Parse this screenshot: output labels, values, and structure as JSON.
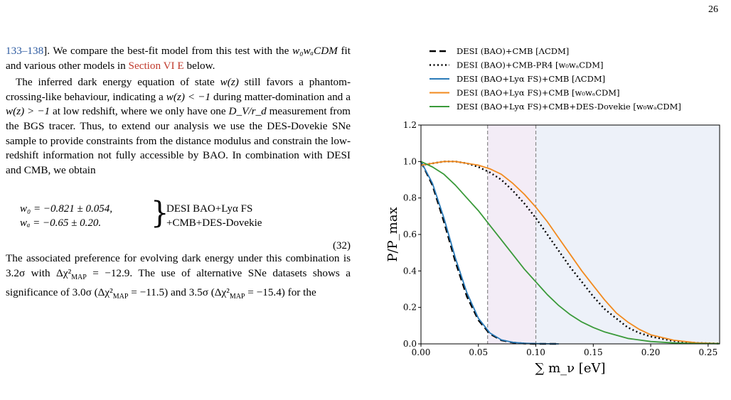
{
  "page": {
    "number": "26"
  },
  "text": {
    "p1_cite": "133–138",
    "p1_after_cite": "]. We compare the best-fit model from this test with the ",
    "p1_model": "w₀wₐCDM",
    "p1_mid": " fit and various other models in ",
    "p1_ref": "Section VI E",
    "p1_end": " below.",
    "p2_a": "The inferred dark energy equation of state ",
    "p2_wz": "w(z)",
    "p2_b": " still favors a phantom-crossing-like behaviour, indicating a ",
    "p2_wz_lt": "w(z) < −1",
    "p2_c": " during matter-domination and a ",
    "p2_wz_gt": "w(z) > −1",
    "p2_d": " at low redshift, where we only have one ",
    "p2_dv": "D_V/r_d",
    "p2_e": " measurement from the BGS tracer. Thus, to extend our analysis we use the DES-Dovekie SNe sample to provide constraints from the distance modulus and constrain the low-redshift information not fully accessible by BAO. In combination with DESI and CMB, we obtain",
    "eq_w0": "w₀ = −0.821 ± 0.054,",
    "eq_wa": "wₐ = −0.65 ± 0.20.",
    "eq_label_1": "DESI BAO+Lyα FS",
    "eq_label_2": "+CMB+DES-Dovekie",
    "eq_number": "(32)",
    "p3_a": "The associated preference for evolving dark energy under this combination is 3.2σ with Δχ²",
    "p3_sub": "MAP",
    "p3_b": " = −12.9. The use of alternative SNe datasets shows a significance of 3.0σ (Δχ²",
    "p3_c": " = −11.5) and 3.5σ (Δχ²",
    "p3_d": " = −15.4) for the"
  },
  "chart_data": {
    "type": "line",
    "xlabel": "∑ m_ν [eV]",
    "ylabel": "P/P_max",
    "xlim": [
      0.0,
      0.26
    ],
    "ylim": [
      0.0,
      1.2
    ],
    "xticks": [
      "0.00",
      "0.05",
      "0.10",
      "0.15",
      "0.20",
      "0.25"
    ],
    "yticks": [
      "0.0",
      "0.2",
      "0.4",
      "0.6",
      "0.8",
      "1.0",
      "1.2"
    ],
    "vlines": [
      0.058,
      0.1
    ],
    "shaded_regions": [
      {
        "from": 0.058,
        "to": 0.1,
        "color": "#f3ecf6"
      },
      {
        "from": 0.1,
        "to": 0.26,
        "color": "#edf1f9"
      }
    ],
    "legend_position": "top",
    "series": [
      {
        "name": "DESI (BAO)+CMB [ΛCDM]",
        "color": "#000000",
        "style": "dashed",
        "x": [
          0.0,
          0.01,
          0.02,
          0.03,
          0.04,
          0.05,
          0.06,
          0.07,
          0.08,
          0.09,
          0.1,
          0.12
        ],
        "y": [
          1.0,
          0.87,
          0.67,
          0.45,
          0.26,
          0.13,
          0.055,
          0.02,
          0.007,
          0.002,
          0.0005,
          0.0
        ]
      },
      {
        "name": "DESI (BAO)+CMB-PR4 [w₀wₐCDM]",
        "color": "#000000",
        "style": "dotted",
        "x": [
          0.0,
          0.01,
          0.02,
          0.03,
          0.04,
          0.05,
          0.06,
          0.07,
          0.08,
          0.09,
          0.1,
          0.11,
          0.12,
          0.13,
          0.14,
          0.15,
          0.16,
          0.17,
          0.18,
          0.19,
          0.2,
          0.22,
          0.24,
          0.26
        ],
        "y": [
          0.98,
          0.99,
          1.0,
          1.0,
          0.99,
          0.97,
          0.94,
          0.9,
          0.84,
          0.77,
          0.69,
          0.6,
          0.51,
          0.42,
          0.34,
          0.26,
          0.19,
          0.14,
          0.09,
          0.06,
          0.04,
          0.015,
          0.005,
          0.002
        ]
      },
      {
        "name": "DESI (BAO+Lyα FS)+CMB [ΛCDM]",
        "color": "#2a7ab8",
        "style": "solid",
        "x": [
          0.0,
          0.01,
          0.02,
          0.03,
          0.04,
          0.05,
          0.06,
          0.07,
          0.08,
          0.09,
          0.1,
          0.12
        ],
        "y": [
          1.0,
          0.88,
          0.69,
          0.47,
          0.28,
          0.14,
          0.06,
          0.022,
          0.008,
          0.003,
          0.001,
          0.0
        ]
      },
      {
        "name": "DESI (BAO+Lyα FS)+CMB [w₀wₐCDM]",
        "color": "#f28a1e",
        "style": "solid",
        "x": [
          0.0,
          0.01,
          0.02,
          0.03,
          0.04,
          0.05,
          0.06,
          0.07,
          0.08,
          0.09,
          0.1,
          0.11,
          0.12,
          0.13,
          0.14,
          0.15,
          0.16,
          0.17,
          0.18,
          0.19,
          0.2,
          0.22,
          0.24,
          0.26
        ],
        "y": [
          0.98,
          0.99,
          1.0,
          1.0,
          0.99,
          0.98,
          0.96,
          0.93,
          0.88,
          0.82,
          0.75,
          0.67,
          0.58,
          0.49,
          0.4,
          0.32,
          0.24,
          0.17,
          0.12,
          0.08,
          0.05,
          0.02,
          0.006,
          0.002
        ]
      },
      {
        "name": "DESI (BAO+Lyα FS)+CMB+DES-Dovekie [w₀wₐCDM]",
        "color": "#3a9a3a",
        "style": "solid",
        "x": [
          0.0,
          0.01,
          0.02,
          0.03,
          0.04,
          0.05,
          0.06,
          0.07,
          0.08,
          0.09,
          0.1,
          0.11,
          0.12,
          0.13,
          0.14,
          0.15,
          0.16,
          0.18,
          0.2,
          0.22,
          0.24,
          0.26
        ],
        "y": [
          1.0,
          0.97,
          0.93,
          0.87,
          0.8,
          0.73,
          0.65,
          0.57,
          0.49,
          0.41,
          0.34,
          0.27,
          0.21,
          0.16,
          0.12,
          0.09,
          0.065,
          0.03,
          0.013,
          0.005,
          0.002,
          0.001
        ]
      }
    ]
  }
}
